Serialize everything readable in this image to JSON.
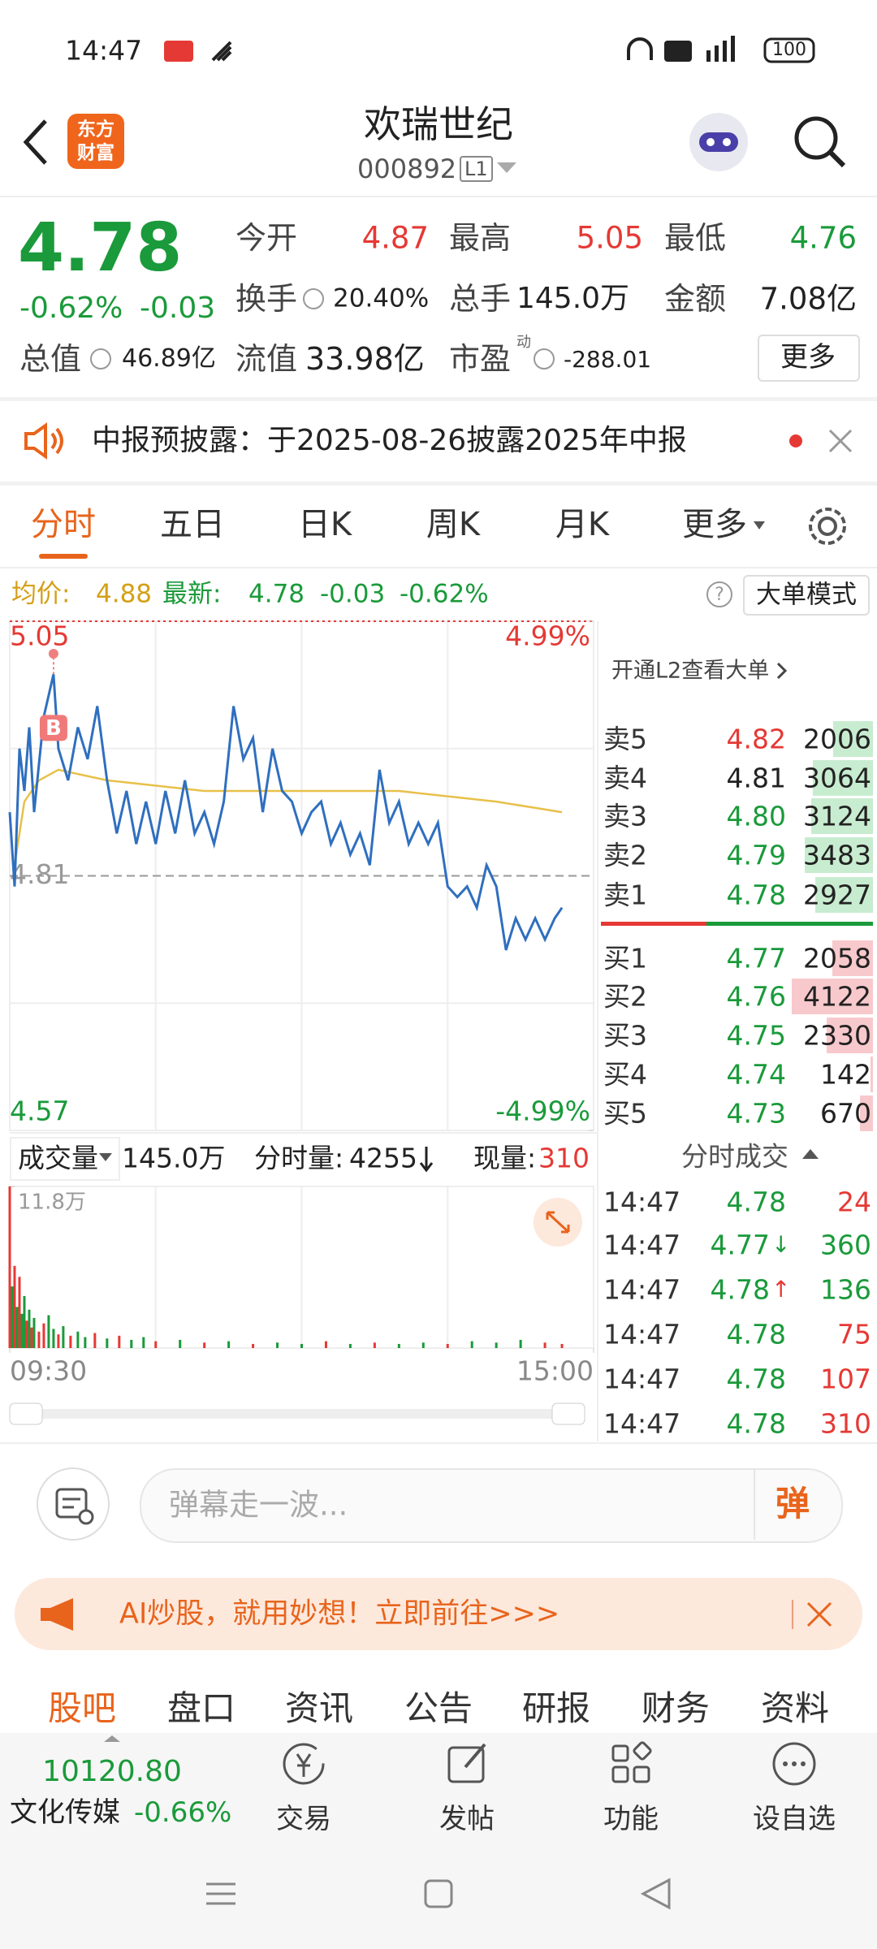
{
  "status_bar": {
    "time": "14:47",
    "battery": "100"
  },
  "header": {
    "logo": [
      "东方",
      "财富"
    ],
    "title": "欢瑞世纪",
    "code": "000892",
    "level": "L1"
  },
  "quote": {
    "price": "4.78",
    "change_pct": "-0.62%",
    "change": "-0.03",
    "fields": [
      {
        "label": "今开",
        "value": "4.87"
      },
      {
        "label": "最高",
        "value": "5.05"
      },
      {
        "label": "最低",
        "value": "4.76"
      },
      {
        "label": "换手",
        "value": "20.40%"
      },
      {
        "label": "总手",
        "value": "145.0万"
      },
      {
        "label": "金额",
        "value": "7.08亿"
      },
      {
        "label": "总值",
        "value": "46.89亿"
      },
      {
        "label": "流值",
        "value": "33.98亿"
      },
      {
        "label": "市盈",
        "value": "-288.01"
      }
    ],
    "pe_tag": "动",
    "more": "更多"
  },
  "notice": {
    "text": "中报预披露：于2025-08-26披露2025年中报"
  },
  "tabs": {
    "items": [
      "分时",
      "五日",
      "日K",
      "周K",
      "月K",
      "更多"
    ],
    "active": 0
  },
  "summary": {
    "avg_label": "均价:",
    "avg": "4.88",
    "latest_label": "最新:",
    "latest": "4.78",
    "change": "-0.03",
    "change_pct": "-0.62%",
    "mode": "大单模式"
  },
  "chart_data": {
    "type": "line",
    "marker": "B",
    "xlim": [
      0,
      240
    ],
    "xticks": [
      {
        "value": 0,
        "label": "09:30"
      },
      {
        "value": 240,
        "label": "15:00"
      }
    ],
    "ylim": [
      4.57,
      5.05
    ],
    "yticks": [
      5.05,
      4.57
    ],
    "y2lim": [
      -4.99,
      4.99
    ],
    "y2ticks": [
      {
        "value": 4.99,
        "label": "4.99%"
      },
      {
        "value": -4.99,
        "label": "-4.99%"
      }
    ],
    "ref_value": 4.81,
    "x": [
      0,
      2,
      4,
      6,
      8,
      10,
      14,
      18,
      20,
      24,
      28,
      32,
      36,
      40,
      44,
      48,
      52,
      56,
      60,
      64,
      68,
      72,
      76,
      80,
      84,
      88,
      92,
      96,
      100,
      104,
      108,
      112,
      116,
      120,
      124,
      128,
      132,
      136,
      140,
      144,
      148,
      152,
      156,
      160,
      164,
      168,
      172,
      176,
      180,
      184,
      188,
      192,
      196,
      200,
      204,
      208,
      212,
      216,
      220,
      224,
      227
    ],
    "series": [
      {
        "color": "#2f6fbf",
        "values": [
          4.87,
          4.8,
          4.93,
          4.89,
          4.95,
          4.87,
          4.96,
          5.0,
          4.93,
          4.9,
          4.95,
          4.92,
          4.97,
          4.9,
          4.85,
          4.89,
          4.84,
          4.88,
          4.84,
          4.89,
          4.85,
          4.9,
          4.85,
          4.87,
          4.84,
          4.88,
          4.97,
          4.92,
          4.94,
          4.87,
          4.93,
          4.89,
          4.88,
          4.85,
          4.87,
          4.88,
          4.84,
          4.86,
          4.83,
          4.85,
          4.82,
          4.91,
          4.86,
          4.88,
          4.84,
          4.86,
          4.84,
          4.86,
          4.8,
          4.79,
          4.8,
          4.78,
          4.82,
          4.8,
          4.74,
          4.77,
          4.75,
          4.77,
          4.75,
          4.77,
          4.78
        ]
      }
    ],
    "avg_x": [
      2,
      6,
      12,
      20,
      40,
      80,
      120,
      160,
      200,
      227
    ],
    "avg_values": [
      4.82,
      4.88,
      4.9,
      4.91,
      4.9,
      4.89,
      4.89,
      4.89,
      4.88,
      4.87
    ],
    "avg_color": "#e8c04a",
    "volume": {
      "ylim": [
        0,
        118000
      ],
      "yticks": [
        {
          "value": 118000,
          "label": "11.8万"
        }
      ],
      "x": [
        0,
        1,
        2,
        3,
        4,
        5,
        6,
        7,
        8,
        9,
        10,
        12,
        14,
        16,
        18,
        20,
        22,
        25,
        28,
        31,
        35,
        40,
        45,
        50,
        55,
        60,
        70,
        80,
        90,
        100,
        110,
        120,
        130,
        140,
        150,
        160,
        170,
        180,
        190,
        200,
        210,
        220,
        227
      ],
      "values": [
        118000,
        45000,
        60000,
        30000,
        52000,
        25000,
        38000,
        20000,
        28000,
        15000,
        22000,
        12000,
        18000,
        24000,
        14000,
        10000,
        16000,
        9000,
        12000,
        8000,
        11000,
        7000,
        9000,
        6000,
        8000,
        5000,
        6000,
        4000,
        5000,
        3000,
        4000,
        3000,
        5000,
        3000,
        4000,
        3000,
        4000,
        3000,
        5000,
        4000,
        6000,
        4000,
        3000
      ],
      "colors": [
        "#e53935",
        "#1a9a3a",
        "#e53935",
        "#1a9a3a",
        "#e53935",
        "#1a9a3a",
        "#1a9a3a",
        "#e53935",
        "#1a9a3a",
        "#e53935",
        "#1a9a3a",
        "#e53935",
        "#e53935",
        "#1a9a3a",
        "#1a9a3a",
        "#e53935",
        "#1a9a3a",
        "#e53935",
        "#1a9a3a",
        "#1a9a3a",
        "#e53935",
        "#1a9a3a",
        "#e53935",
        "#1a9a3a",
        "#1a9a3a",
        "#e53935",
        "#1a9a3a",
        "#e53935",
        "#1a9a3a",
        "#e53935",
        "#1a9a3a",
        "#1a9a3a",
        "#e53935",
        "#1a9a3a",
        "#e53935",
        "#1a9a3a",
        "#1a9a3a",
        "#e53935",
        "#1a9a3a",
        "#1a9a3a",
        "#1a9a3a",
        "#e53935",
        "#e53935"
      ]
    }
  },
  "order_book": {
    "l2_text": "开通L2查看大单",
    "asks": [
      {
        "label": "卖5",
        "price": "4.82",
        "volume": 2006,
        "color": "#e53935"
      },
      {
        "label": "卖4",
        "price": "4.81",
        "volume": 3064,
        "color": "#222222"
      },
      {
        "label": "卖3",
        "price": "4.80",
        "volume": 3124,
        "color": "#1a9a3a"
      },
      {
        "label": "卖2",
        "price": "4.79",
        "volume": 3483,
        "color": "#1a9a3a"
      },
      {
        "label": "卖1",
        "price": "4.78",
        "volume": 2927,
        "color": "#1a9a3a"
      }
    ],
    "bids": [
      {
        "label": "买1",
        "price": "4.77",
        "volume": 2058,
        "color": "#1a9a3a"
      },
      {
        "label": "买2",
        "price": "4.76",
        "volume": 4122,
        "color": "#1a9a3a"
      },
      {
        "label": "买3",
        "price": "4.75",
        "volume": 2330,
        "color": "#1a9a3a"
      },
      {
        "label": "买4",
        "price": "4.74",
        "volume": 142,
        "color": "#1a9a3a"
      },
      {
        "label": "买5",
        "price": "4.73",
        "volume": 670,
        "color": "#1a9a3a"
      }
    ]
  },
  "volume_bar": {
    "label": "成交量",
    "total": "145.0万",
    "per_minute_label": "分时量:",
    "per_minute": "4255",
    "current_label": "现量:",
    "current": "310"
  },
  "trades": {
    "title": "分时成交",
    "rows": [
      {
        "time": "14:47",
        "price": "4.78",
        "volume": "24",
        "color": "#e53935"
      },
      {
        "time": "14:47",
        "price": "4.77",
        "arrow": "↓",
        "volume": "360",
        "color": "#1a9a3a"
      },
      {
        "time": "14:47",
        "price": "4.78",
        "arrow": "↑",
        "volume": "136",
        "color": "#1a9a3a"
      },
      {
        "time": "14:47",
        "price": "4.78",
        "volume": "75",
        "color": "#e53935"
      },
      {
        "time": "14:47",
        "price": "4.78",
        "volume": "107",
        "color": "#e53935"
      },
      {
        "time": "14:47",
        "price": "4.78",
        "volume": "310",
        "color": "#e53935"
      }
    ]
  },
  "comment": {
    "placeholder": "弹幕走一波...",
    "button": "弹"
  },
  "ad": {
    "text": "AI炒股，就用妙想！立即前往>>>"
  },
  "bottom_tabs": {
    "items": [
      "股吧",
      "盘口",
      "资讯",
      "公告",
      "研报",
      "财务",
      "资料"
    ],
    "active": 0
  },
  "index": {
    "value": "10120.80",
    "name": "文化传媒",
    "change": "-0.66%"
  },
  "nav": [
    "交易",
    "发帖",
    "功能",
    "设自选"
  ]
}
